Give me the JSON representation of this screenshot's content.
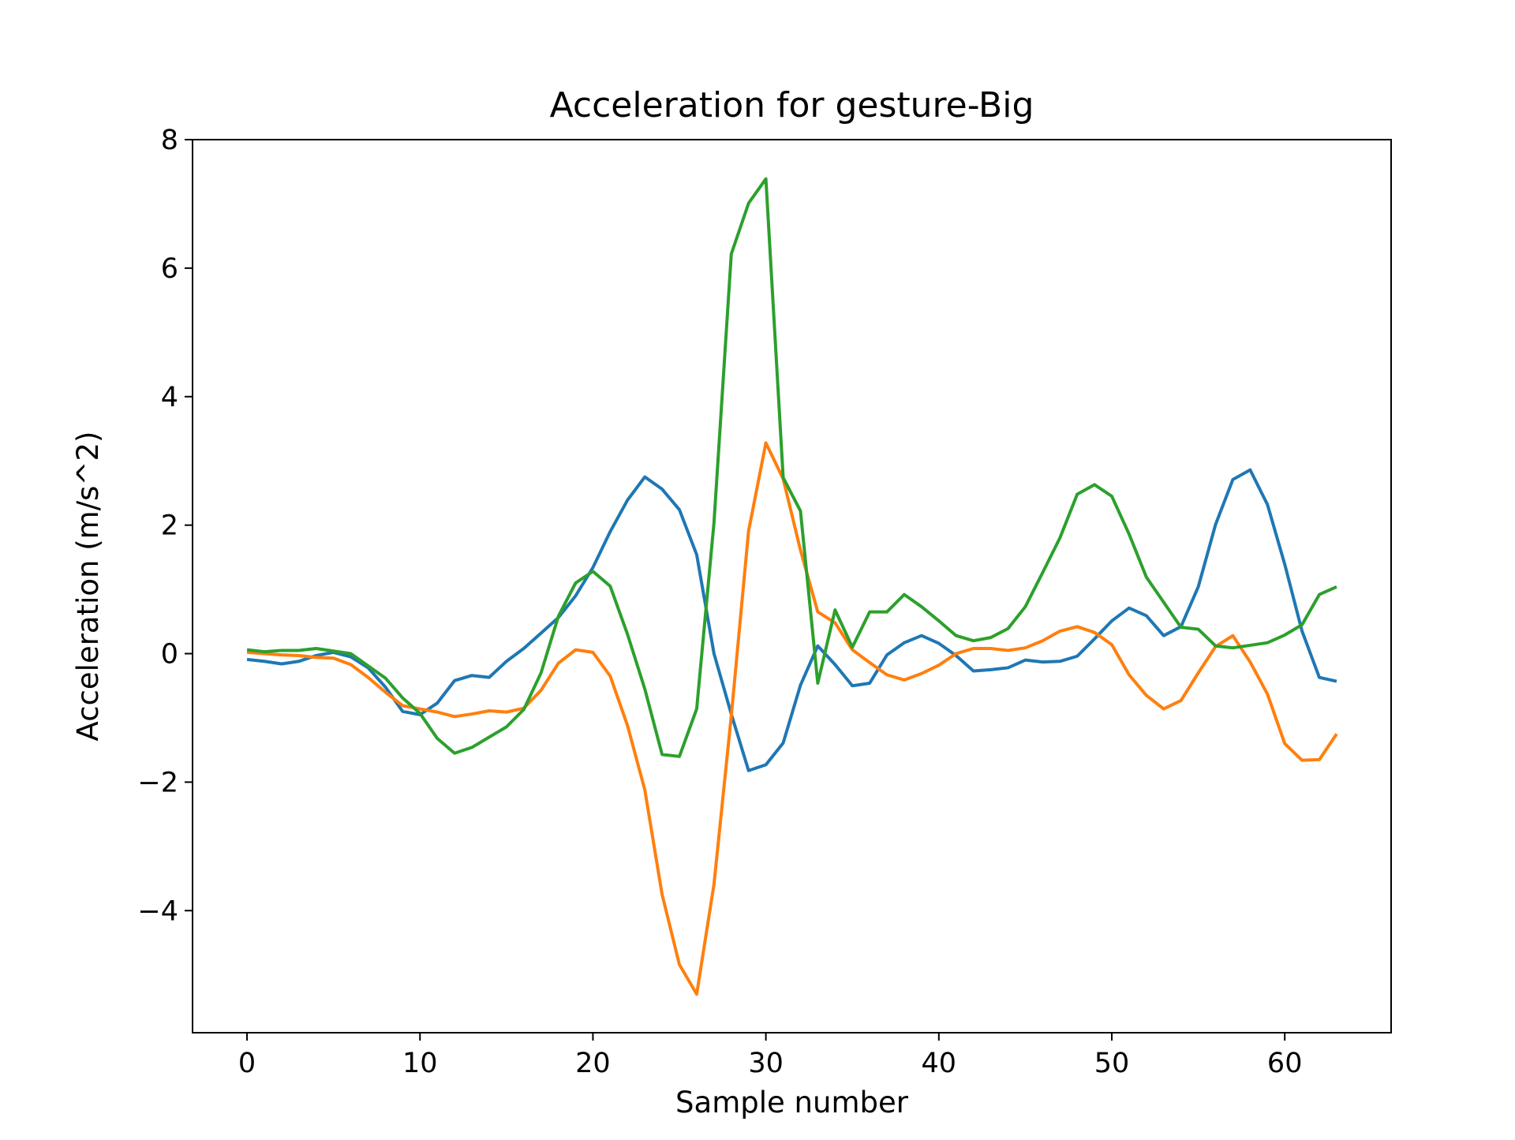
{
  "chart_data": {
    "type": "line",
    "title": "Acceleration for gesture-Big",
    "xlabel": "Sample number",
    "ylabel": "Acceleration (m/s^2)",
    "xlim": [
      -3.15,
      66.15
    ],
    "ylim": [
      -5.9,
      8
    ],
    "xticks": [
      0,
      10,
      20,
      30,
      40,
      50,
      60
    ],
    "yticks": [
      -4,
      -2,
      0,
      2,
      4,
      6,
      8
    ],
    "xtick_labels": [
      "0",
      "10",
      "20",
      "30",
      "40",
      "50",
      "60"
    ],
    "ytick_labels": [
      "−4",
      "−2",
      "0",
      "2",
      "4",
      "6",
      "8"
    ],
    "grid": false,
    "legend": "none",
    "x": [
      0,
      1,
      2,
      3,
      4,
      5,
      6,
      7,
      8,
      9,
      10,
      11,
      12,
      13,
      14,
      15,
      16,
      17,
      18,
      19,
      20,
      21,
      22,
      23,
      24,
      25,
      26,
      27,
      28,
      29,
      30,
      31,
      32,
      33,
      34,
      35,
      36,
      37,
      38,
      39,
      40,
      41,
      42,
      43,
      44,
      45,
      46,
      47,
      48,
      49,
      50,
      51,
      52,
      53,
      54,
      55,
      56,
      57,
      58,
      59,
      60,
      61,
      62,
      63
    ],
    "series": [
      {
        "color": "#1f77b4",
        "values": [
          -0.09,
          -0.12,
          -0.16,
          -0.12,
          -0.03,
          0.02,
          -0.05,
          -0.22,
          -0.52,
          -0.9,
          -0.95,
          -0.77,
          -0.42,
          -0.34,
          -0.37,
          -0.12,
          0.08,
          0.32,
          0.56,
          0.9,
          1.34,
          1.9,
          2.39,
          2.75,
          2.56,
          2.24,
          1.54,
          0.0,
          -0.94,
          -1.82,
          -1.73,
          -1.39,
          -0.49,
          0.12,
          -0.17,
          -0.5,
          -0.46,
          -0.02,
          0.17,
          0.28,
          0.16,
          -0.03,
          -0.27,
          -0.25,
          -0.22,
          -0.1,
          -0.13,
          -0.12,
          -0.04,
          0.23,
          0.51,
          0.71,
          0.59,
          0.28,
          0.42,
          1.04,
          2.01,
          2.71,
          2.86,
          2.32,
          1.39,
          0.35,
          -0.37,
          -0.43
        ]
      },
      {
        "color": "#ff7f0e",
        "values": [
          0.02,
          0.0,
          -0.02,
          -0.03,
          -0.06,
          -0.07,
          -0.17,
          -0.37,
          -0.6,
          -0.81,
          -0.86,
          -0.91,
          -0.98,
          -0.94,
          -0.89,
          -0.91,
          -0.85,
          -0.57,
          -0.15,
          0.06,
          0.02,
          -0.35,
          -1.12,
          -2.12,
          -3.75,
          -4.84,
          -5.3,
          -3.59,
          -0.97,
          1.91,
          3.28,
          2.72,
          1.61,
          0.65,
          0.48,
          0.06,
          -0.14,
          -0.33,
          -0.41,
          -0.31,
          -0.18,
          0.0,
          0.08,
          0.08,
          0.05,
          0.09,
          0.2,
          0.35,
          0.42,
          0.33,
          0.14,
          -0.33,
          -0.65,
          -0.86,
          -0.73,
          -0.3,
          0.11,
          0.28,
          -0.13,
          -0.63,
          -1.4,
          -1.66,
          -1.65,
          -1.25
        ]
      },
      {
        "color": "#2ca02c",
        "values": [
          0.06,
          0.03,
          0.05,
          0.05,
          0.08,
          0.04,
          0.0,
          -0.19,
          -0.38,
          -0.69,
          -0.93,
          -1.32,
          -1.55,
          -1.46,
          -1.3,
          -1.14,
          -0.87,
          -0.3,
          0.58,
          1.1,
          1.28,
          1.05,
          0.3,
          -0.55,
          -1.57,
          -1.6,
          -0.86,
          2.04,
          6.22,
          7.01,
          7.39,
          2.74,
          2.22,
          -0.46,
          0.68,
          0.1,
          0.65,
          0.65,
          0.92,
          0.73,
          0.51,
          0.28,
          0.2,
          0.25,
          0.39,
          0.73,
          1.26,
          1.8,
          2.48,
          2.63,
          2.45,
          1.86,
          1.19,
          0.8,
          0.41,
          0.38,
          0.12,
          0.09,
          0.13,
          0.17,
          0.29,
          0.45,
          0.92,
          1.04
        ]
      }
    ]
  }
}
